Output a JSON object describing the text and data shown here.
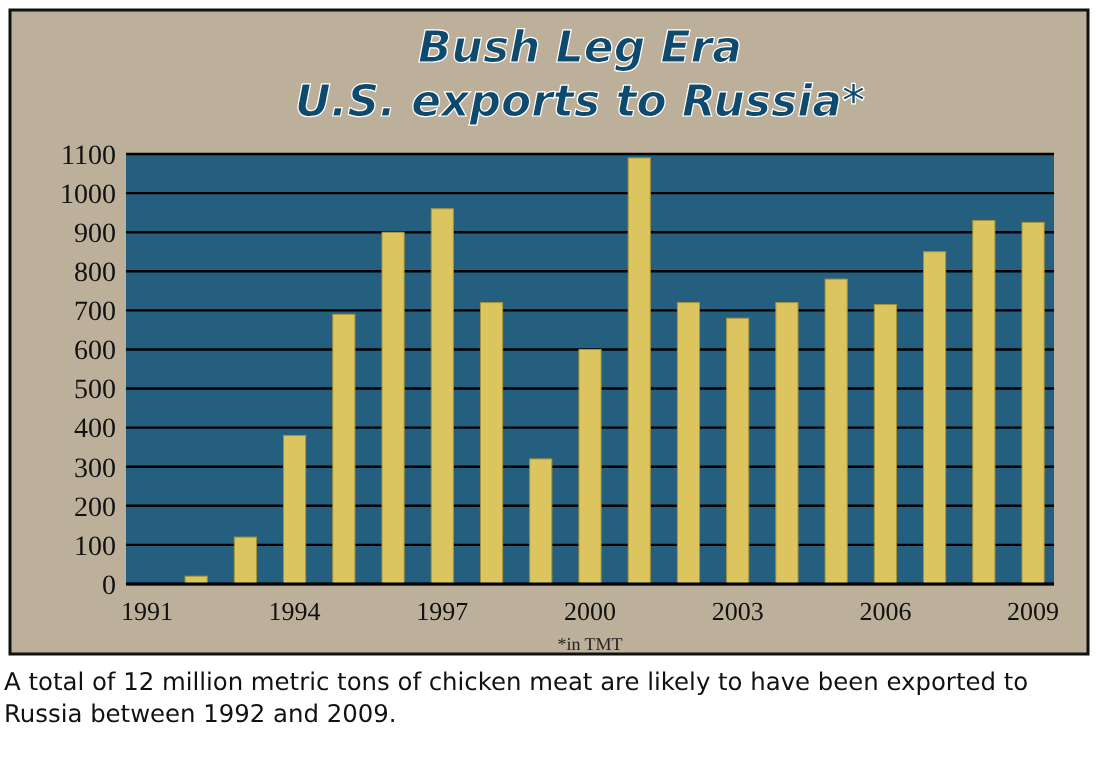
{
  "chart_data": {
    "type": "bar",
    "title": "Bush Leg Era",
    "subtitle": "U.S. exports to Russia*",
    "categories": [
      "1991",
      null,
      null,
      "1994",
      null,
      null,
      "1997",
      null,
      null,
      "2000",
      null,
      null,
      "2003",
      null,
      null,
      "2006",
      null,
      null,
      "2009"
    ],
    "values": [
      null,
      20,
      120,
      380,
      690,
      900,
      960,
      720,
      320,
      600,
      1090,
      720,
      680,
      720,
      780,
      715,
      850,
      930,
      925
    ],
    "color": "#dcc55e",
    "ylim": [
      0,
      1100
    ],
    "yticks": [
      0,
      100,
      200,
      300,
      400,
      500,
      600,
      700,
      800,
      900,
      1000,
      1100
    ],
    "grid": "y",
    "annotations": [
      "*in TMT",
      "A total of 12 million metric tons of chicken meat are likely to have been exported to Russia between 1992 and 2009."
    ]
  }
}
